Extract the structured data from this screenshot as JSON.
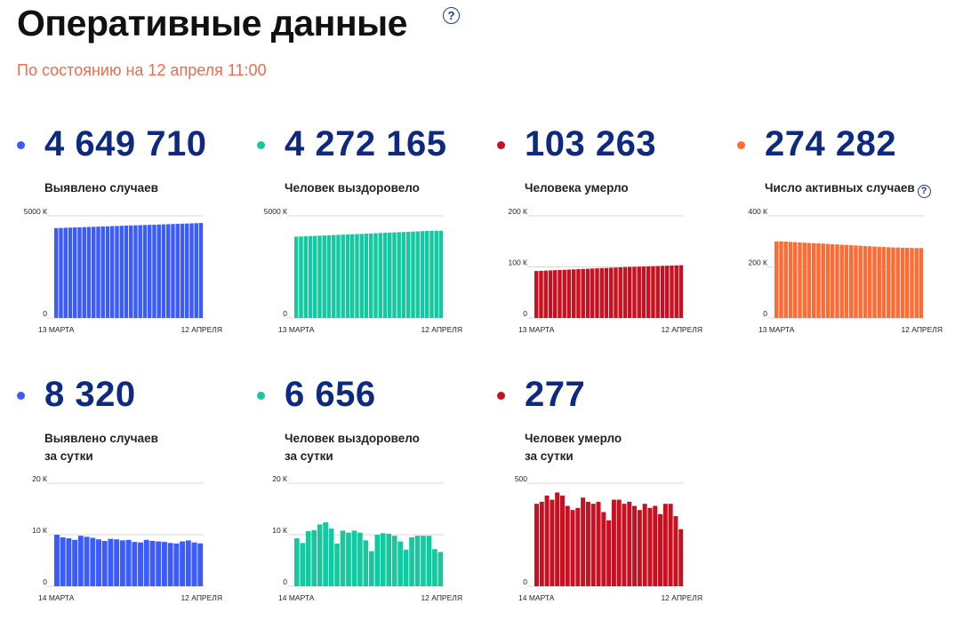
{
  "header": {
    "title": "Оперативные данные",
    "help": "?",
    "subtitle": "По состоянию на 12 апреля 11:00"
  },
  "panels": [
    {
      "value": "4 649 710",
      "label_line1": "Выявлено случаев",
      "label_line2": "",
      "color": "#3b5bfd",
      "help": "",
      "chart_data": {
        "type": "bar",
        "ylim": [
          0,
          5000
        ],
        "yticks": [
          "5000 К",
          "0"
        ],
        "ytick_values": [
          5000,
          0
        ],
        "x_start": "13 МАРТА",
        "x_end": "12 АПРЕЛЯ",
        "values": [
          4400,
          4408,
          4416,
          4424,
          4432,
          4440,
          4448,
          4456,
          4464,
          4472,
          4480,
          4488,
          4496,
          4504,
          4512,
          4520,
          4528,
          4536,
          4544,
          4552,
          4560,
          4568,
          4576,
          4584,
          4592,
          4600,
          4608,
          4616,
          4624,
          4632,
          4640,
          4650
        ]
      }
    },
    {
      "value": "4 272 165",
      "label_line1": "Человек выздоровело",
      "label_line2": "",
      "color": "#14c8a0",
      "help": "",
      "chart_data": {
        "type": "bar",
        "ylim": [
          0,
          5000
        ],
        "yticks": [
          "5000 К",
          "0"
        ],
        "ytick_values": [
          5000,
          0
        ],
        "x_start": "13 МАРТА",
        "x_end": "12 АПРЕЛЯ",
        "values": [
          3980,
          3990,
          4000,
          4010,
          4020,
          4030,
          4040,
          4050,
          4060,
          4070,
          4080,
          4090,
          4100,
          4110,
          4120,
          4130,
          4140,
          4150,
          4160,
          4170,
          4180,
          4190,
          4200,
          4210,
          4220,
          4230,
          4240,
          4250,
          4260,
          4265,
          4270,
          4272
        ]
      }
    },
    {
      "value": "103 263",
      "label_line1": "Человека умерло",
      "label_line2": "",
      "color": "#c81020",
      "help": "",
      "chart_data": {
        "type": "bar",
        "ylim": [
          0,
          200
        ],
        "yticks": [
          "200 К",
          "100 К",
          "0"
        ],
        "ytick_values": [
          200,
          100,
          0
        ],
        "x_start": "13 МАРТА",
        "x_end": "12 АПРЕЛЯ",
        "values": [
          92,
          92.4,
          92.8,
          93.2,
          93.6,
          94,
          94.4,
          94.8,
          95.2,
          95.6,
          96,
          96.4,
          96.8,
          97.2,
          97.6,
          98,
          98.4,
          98.8,
          99.2,
          99.6,
          100,
          100.3,
          100.6,
          100.9,
          101.2,
          101.5,
          101.8,
          102.1,
          102.4,
          102.7,
          103,
          103.3
        ]
      }
    },
    {
      "value": "274 282",
      "label_line1": "Число активных случаев",
      "label_line2": "",
      "color": "#ff6b35",
      "help": "?",
      "chart_data": {
        "type": "bar",
        "ylim": [
          0,
          400
        ],
        "yticks": [
          "400 К",
          "200 К",
          "0"
        ],
        "ytick_values": [
          400,
          200,
          0
        ],
        "x_start": "13 МАРТА",
        "x_end": "12 АПРЕЛЯ",
        "values": [
          300,
          300,
          299,
          298,
          297,
          296,
          295,
          294,
          293,
          292,
          291,
          290,
          289,
          288,
          287,
          286,
          285,
          284,
          283,
          282,
          281,
          280,
          279,
          278,
          277,
          276,
          276,
          275,
          275,
          274,
          274,
          274
        ]
      }
    },
    {
      "value": "8 320",
      "label_line1": "Выявлено случаев",
      "label_line2": "за сутки",
      "color": "#3b5bfd",
      "help": "",
      "chart_data": {
        "type": "bar",
        "ylim": [
          0,
          20000
        ],
        "yticks": [
          "20 К",
          "10 К",
          "0"
        ],
        "ytick_values": [
          20000,
          10000,
          0
        ],
        "x_start": "14 МАРТА",
        "x_end": "12 АПРЕЛЯ",
        "values": [
          10000,
          9500,
          9300,
          9000,
          9800,
          9600,
          9400,
          9100,
          8800,
          9200,
          9100,
          8900,
          9000,
          8600,
          8500,
          9000,
          8800,
          8700,
          8600,
          8400,
          8300,
          8700,
          8900,
          8500,
          8320
        ]
      }
    },
    {
      "value": "6 656",
      "label_line1": "Человек выздоровело",
      "label_line2": "за сутки",
      "color": "#14c8a0",
      "help": "",
      "chart_data": {
        "type": "bar",
        "ylim": [
          0,
          20000
        ],
        "yticks": [
          "20 К",
          "10 К",
          "0"
        ],
        "ytick_values": [
          20000,
          10000,
          0
        ],
        "x_start": "14 МАРТА",
        "x_end": "12 АПРЕЛЯ",
        "values": [
          9300,
          8400,
          10700,
          10900,
          12000,
          12400,
          11200,
          8300,
          10800,
          10400,
          10800,
          10400,
          8900,
          6800,
          10000,
          10300,
          10200,
          9800,
          8700,
          7100,
          9500,
          9800,
          9800,
          9800,
          7200,
          6656
        ]
      }
    },
    {
      "value": "277",
      "label_line1": "Человек умерло",
      "label_line2": "за сутки",
      "color": "#c81020",
      "help": "",
      "chart_data": {
        "type": "bar",
        "ylim": [
          0,
          500
        ],
        "yticks": [
          "500",
          "0"
        ],
        "ytick_values": [
          500,
          0
        ],
        "x_start": "14 МАРТА",
        "x_end": "12 АПРЕЛЯ",
        "values": [
          400,
          410,
          440,
          420,
          455,
          440,
          390,
          370,
          380,
          430,
          410,
          400,
          410,
          360,
          320,
          420,
          420,
          400,
          410,
          390,
          370,
          400,
          380,
          390,
          350,
          400,
          400,
          340,
          277
        ]
      }
    }
  ]
}
